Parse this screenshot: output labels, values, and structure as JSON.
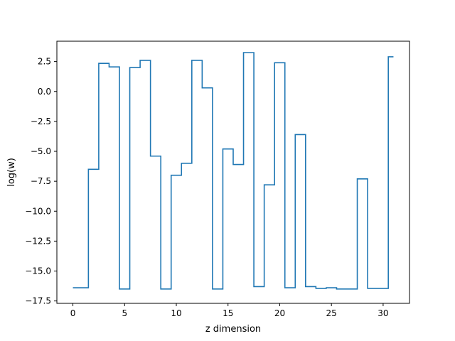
{
  "chart_data": {
    "type": "line",
    "drawstyle": "steps-mid",
    "title": "",
    "xlabel": "z dimension",
    "ylabel": "log(w)",
    "xlim": [
      -1.55,
      32.55
    ],
    "ylim": [
      -17.7,
      4.2
    ],
    "xticks": [
      0,
      5,
      10,
      15,
      20,
      25,
      30
    ],
    "xtick_labels": [
      "0",
      "5",
      "10",
      "15",
      "20",
      "25",
      "30"
    ],
    "yticks": [
      2.5,
      0.0,
      -2.5,
      -5.0,
      -7.5,
      -10.0,
      -12.5,
      -15.0,
      -17.5
    ],
    "ytick_labels": [
      "2.5",
      "0.0",
      "−2.5",
      "−5.0",
      "−7.5",
      "−10.0",
      "−12.5",
      "−15.0",
      "−17.5"
    ],
    "grid": false,
    "series": [
      {
        "color": "#1f77b4",
        "x": [
          0,
          1,
          2,
          3,
          4,
          5,
          6,
          7,
          8,
          9,
          10,
          11,
          12,
          13,
          14,
          15,
          16,
          17,
          18,
          19,
          20,
          21,
          22,
          23,
          24,
          25,
          26,
          27,
          28,
          29,
          30,
          31
        ],
        "values": [
          -16.4,
          -16.4,
          -6.5,
          2.35,
          2.05,
          -16.5,
          2.0,
          2.6,
          -5.4,
          -16.5,
          -7.0,
          -6.0,
          2.6,
          0.3,
          -16.5,
          -4.8,
          -6.1,
          3.25,
          -16.3,
          -7.8,
          2.4,
          -16.4,
          -3.6,
          -16.3,
          -16.45,
          -16.4,
          -16.5,
          -16.5,
          -7.3,
          -16.45,
          -16.45,
          2.9
        ]
      }
    ]
  }
}
